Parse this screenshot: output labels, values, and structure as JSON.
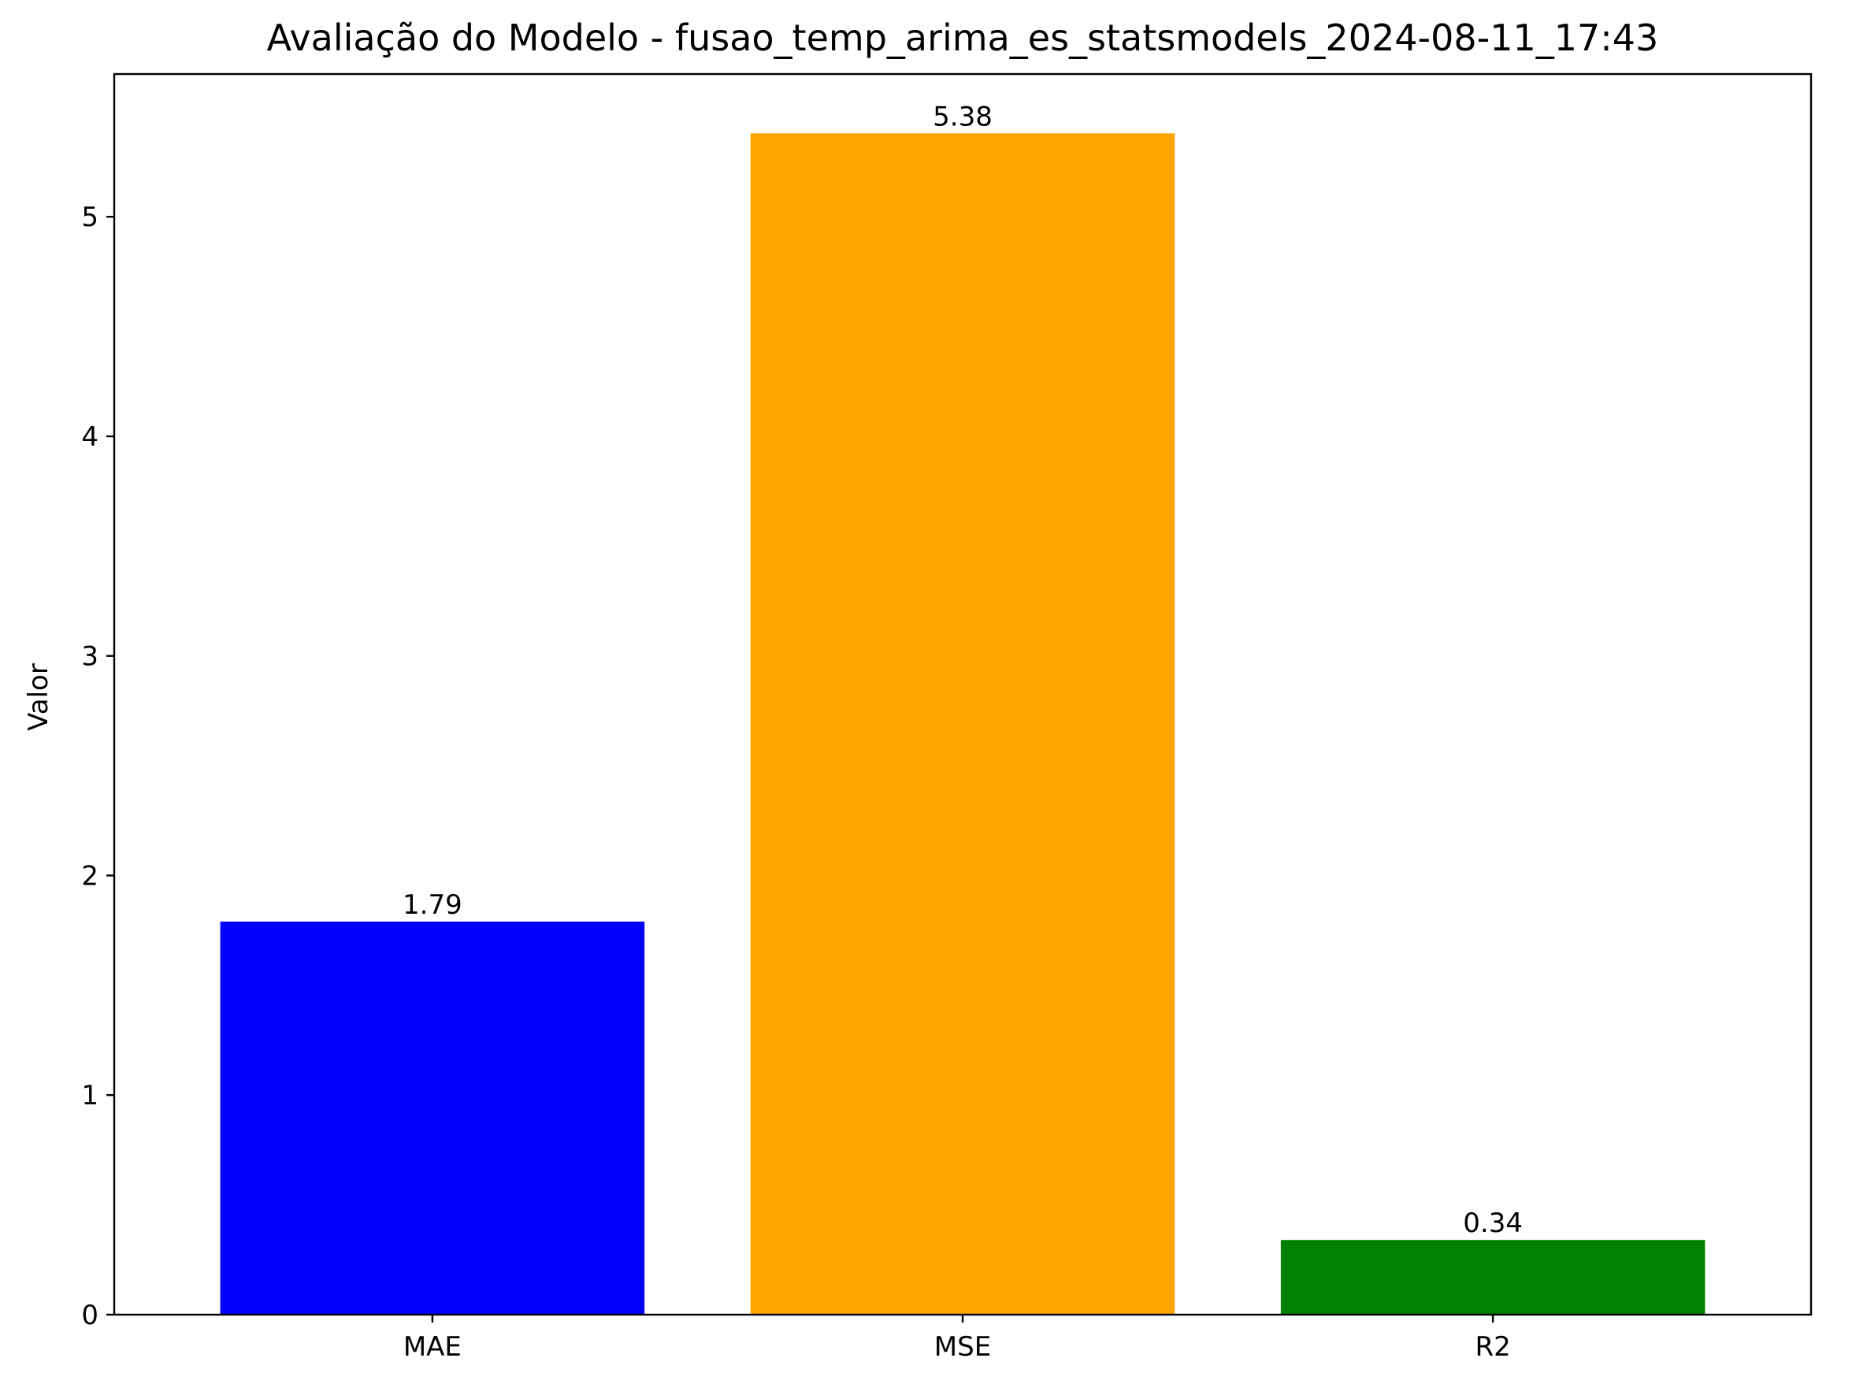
{
  "chart_data": {
    "type": "bar",
    "title": "Avaliação do Modelo - fusao_temp_arima_es_statsmodels_2024-08-11_17:43",
    "xlabel": "",
    "ylabel": "Valor",
    "categories": [
      "MAE",
      "MSE",
      "R2"
    ],
    "values": [
      1.79,
      5.38,
      0.34
    ],
    "value_labels": [
      "1.79",
      "5.38",
      "0.34"
    ],
    "colors": [
      "#0000ff",
      "#ffa500",
      "#008000"
    ],
    "ylim": [
      0,
      5.65
    ],
    "yticks": [
      0,
      1,
      2,
      3,
      4,
      5
    ],
    "ytick_labels": [
      "0",
      "1",
      "2",
      "3",
      "4",
      "5"
    ],
    "grid": false,
    "legend": "none"
  }
}
